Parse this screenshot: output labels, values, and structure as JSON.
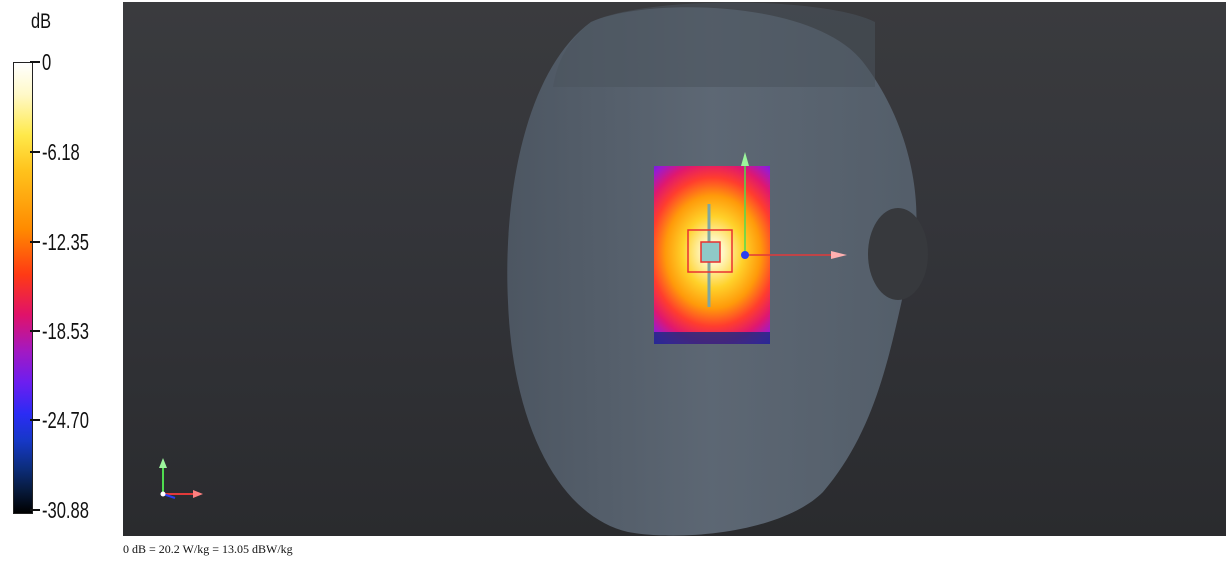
{
  "legend": {
    "unit": "dB",
    "ticks": [
      "0",
      "-6.18",
      "-12.35",
      "-18.53",
      "-24.70",
      "-30.88"
    ]
  },
  "viewport": {
    "phantom_color": "#5a6470",
    "axis_x_color": "#e23a3a",
    "axis_y_color": "#4fdc4f",
    "probe_origin_color": "#2a3ef0"
  },
  "footer": {
    "reference_text": "0 dB = 20.2 W/kg = 13.05 dBW/kg"
  }
}
